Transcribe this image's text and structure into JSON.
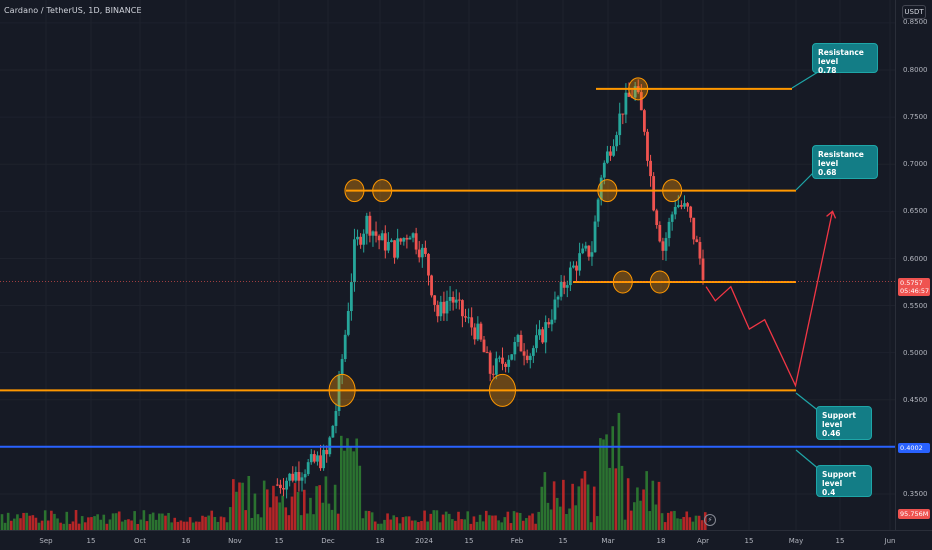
{
  "header": {
    "title": "Cardano / TetherUS, 1D, BINANCE",
    "currency_button": "USDT"
  },
  "price_axis": {
    "ticks": [
      "0.8000",
      "0.7500",
      "0.7000",
      "0.6500",
      "0.6000",
      "0.5500",
      "0.5000",
      "0.4500",
      "0.3500"
    ],
    "top_partial": "0.8500",
    "current_price": "0.5757",
    "countdown": "05:46:57",
    "support_tag": "0.4002",
    "volume_tag": "95.756M"
  },
  "time_axis": {
    "labels": [
      "Sep",
      "15",
      "Oct",
      "16",
      "Nov",
      "15",
      "Dec",
      "18",
      "2024",
      "15",
      "Feb",
      "15",
      "Mar",
      "18",
      "Apr",
      "15",
      "May",
      "15",
      "Jun"
    ]
  },
  "callouts": {
    "resistance_078": {
      "line1": "Resistance level",
      "line2": "0.78"
    },
    "resistance_068": {
      "line1": "Resistance level",
      "line2": "0.68"
    },
    "support_046": {
      "line1": "Support level",
      "line2": "0.46"
    },
    "support_04": {
      "line1": "Support level",
      "line2": "0.4"
    }
  },
  "colors": {
    "background": "#161a25",
    "up": "#26a69a",
    "down": "#ef5350",
    "level_line": "#ff9800",
    "support_line": "#2962ff",
    "projection": "#f23645",
    "callout": "#137d86",
    "volume_up": "#2e7d32",
    "volume_down": "#c62828"
  },
  "chart_data": {
    "type": "candlestick",
    "symbol": "Cardano / TetherUS",
    "interval": "1D",
    "exchange": "BINANCE",
    "y_range": [
      0.33,
      0.86
    ],
    "last_price": 0.5757,
    "levels": [
      {
        "name": "Resistance level",
        "value": 0.78,
        "color": "#ff9800"
      },
      {
        "name": "Resistance level",
        "value": 0.68,
        "color": "#ff9800"
      },
      {
        "name": "Support level",
        "value": 0.46,
        "color": "#ff9800"
      },
      {
        "name": "Support level",
        "value": 0.4,
        "color": "#2962ff"
      }
    ],
    "local_level": 0.575,
    "close_path": [
      [
        "2023-11-15",
        0.36
      ],
      [
        "2023-11-25",
        0.38
      ],
      [
        "2023-12-01",
        0.39
      ],
      [
        "2023-12-04",
        0.44
      ],
      [
        "2023-12-07",
        0.52
      ],
      [
        "2023-12-10",
        0.61
      ],
      [
        "2023-12-14",
        0.64
      ],
      [
        "2023-12-18",
        0.62
      ],
      [
        "2023-12-23",
        0.61
      ],
      [
        "2023-12-28",
        0.63
      ],
      [
        "2024-01-02",
        0.6
      ],
      [
        "2024-01-06",
        0.54
      ],
      [
        "2024-01-10",
        0.56
      ],
      [
        "2024-01-14",
        0.54
      ],
      [
        "2024-01-19",
        0.52
      ],
      [
        "2024-01-23",
        0.48
      ],
      [
        "2024-01-27",
        0.49
      ],
      [
        "2024-02-01",
        0.51
      ],
      [
        "2024-02-05",
        0.5
      ],
      [
        "2024-02-09",
        0.52
      ],
      [
        "2024-02-13",
        0.55
      ],
      [
        "2024-02-17",
        0.58
      ],
      [
        "2024-02-21",
        0.6
      ],
      [
        "2024-02-25",
        0.61
      ],
      [
        "2024-02-28",
        0.69
      ],
      [
        "2024-03-03",
        0.73
      ],
      [
        "2024-03-06",
        0.76
      ],
      [
        "2024-03-10",
        0.78
      ],
      [
        "2024-03-13",
        0.74
      ],
      [
        "2024-03-16",
        0.66
      ],
      [
        "2024-03-19",
        0.61
      ],
      [
        "2024-03-23",
        0.66
      ],
      [
        "2024-03-27",
        0.65
      ],
      [
        "2024-03-31",
        0.6
      ],
      [
        "2024-04-02",
        0.5757
      ]
    ],
    "markers": [
      [
        "2023-12-06",
        0.46
      ],
      [
        "2023-12-10",
        0.672
      ],
      [
        "2023-12-19",
        0.672
      ],
      [
        "2024-01-27",
        0.46
      ],
      [
        "2024-03-01",
        0.672
      ],
      [
        "2024-03-06",
        0.575
      ],
      [
        "2024-03-11",
        0.78
      ],
      [
        "2024-03-18",
        0.575
      ],
      [
        "2024-03-22",
        0.672
      ]
    ],
    "projection": [
      [
        "2024-04-02",
        0.57
      ],
      [
        "2024-04-05",
        0.555
      ],
      [
        "2024-04-10",
        0.57
      ],
      [
        "2024-04-16",
        0.525
      ],
      [
        "2024-04-21",
        0.535
      ],
      [
        "2024-05-01",
        0.465
      ],
      [
        "2024-05-13",
        0.65
      ]
    ]
  }
}
